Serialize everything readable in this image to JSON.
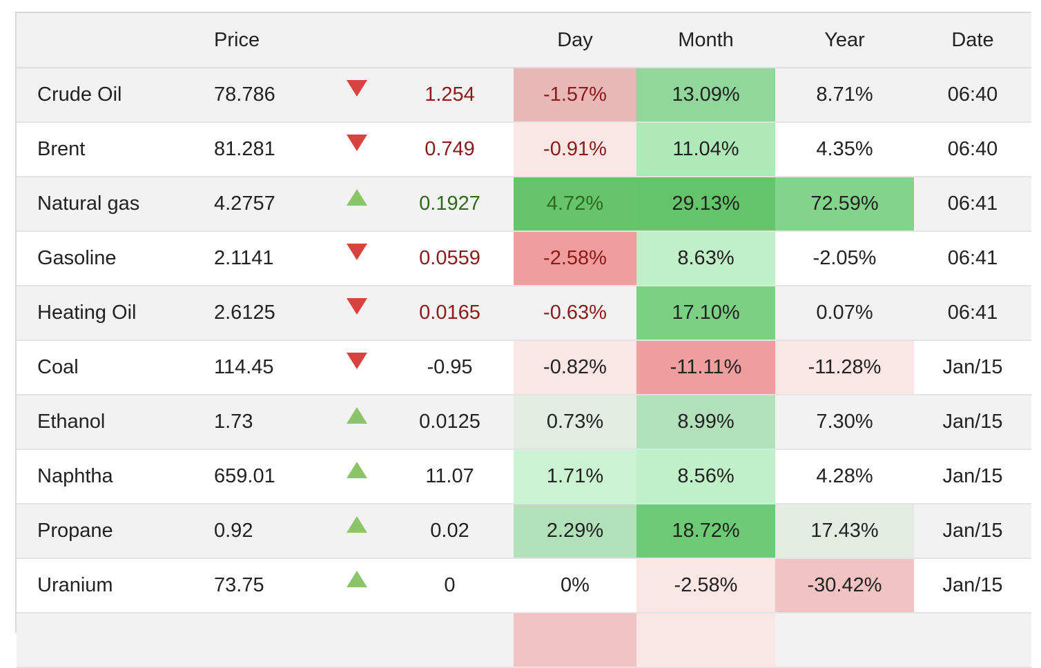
{
  "headers": {
    "name": "",
    "price": "Price",
    "dir": "",
    "change": "",
    "day": "Day",
    "month": "Month",
    "year": "Year",
    "date": "Date"
  },
  "rows": [
    {
      "name": "Crude Oil",
      "price": "78.786",
      "dir": "down",
      "change": "1.254",
      "change_color": "red",
      "day": "-1.57%",
      "day_bg": "#e8b7b6",
      "month": "13.09%",
      "month_bg": "#91d69a",
      "year": "8.71%",
      "year_bg": "",
      "date": "06:40"
    },
    {
      "name": "Brent",
      "price": "81.281",
      "dir": "down",
      "change": "0.749",
      "change_color": "red",
      "day": "-0.91%",
      "day_bg": "#fbe6e6",
      "month": "11.04%",
      "month_bg": "#aee9b7",
      "year": "4.35%",
      "year_bg": "",
      "date": "06:40"
    },
    {
      "name": "Natural gas",
      "price": "4.2757",
      "dir": "up",
      "change": "0.1927",
      "change_color": "green",
      "day": "4.72%",
      "day_bg": "#66c56b",
      "month": "29.13%",
      "month_bg": "#64c46a",
      "year": "72.59%",
      "year_bg": "#84d38c",
      "date": "06:41"
    },
    {
      "name": "Gasoline",
      "price": "2.1141",
      "dir": "down",
      "change": "0.0559",
      "change_color": "red",
      "day": "-2.58%",
      "day_bg": "#f09d9d",
      "month": "8.63%",
      "month_bg": "#c0efc8",
      "year": "-2.05%",
      "year_bg": "",
      "date": "06:41"
    },
    {
      "name": "Heating Oil",
      "price": "2.6125",
      "dir": "down",
      "change": "0.0165",
      "change_color": "red",
      "day": "-0.63%",
      "day_bg": "",
      "month": "17.10%",
      "month_bg": "#7bd083",
      "year": "0.07%",
      "year_bg": "",
      "date": "06:41"
    },
    {
      "name": "Coal",
      "price": "114.45",
      "dir": "down",
      "change": "-0.95",
      "change_color": "",
      "day": "-0.82%",
      "day_bg": "#fbe6e6",
      "month": "-11.11%",
      "month_bg": "#f09d9d",
      "year": "-11.28%",
      "year_bg": "#fbe6e6",
      "date": "Jan/15"
    },
    {
      "name": "Ethanol",
      "price": "1.73",
      "dir": "up",
      "change": "0.0125",
      "change_color": "",
      "day": "0.73%",
      "day_bg": "#e2ece3",
      "month": "8.99%",
      "month_bg": "#b2e0b8",
      "year": "7.30%",
      "year_bg": "",
      "date": "Jan/15"
    },
    {
      "name": "Naphtha",
      "price": "659.01",
      "dir": "up",
      "change": "11.07",
      "change_color": "",
      "day": "1.71%",
      "day_bg": "#cbf3d2",
      "month": "8.56%",
      "month_bg": "#c0efc8",
      "year": "4.28%",
      "year_bg": "",
      "date": "Jan/15"
    },
    {
      "name": "Propane",
      "price": "0.92",
      "dir": "up",
      "change": "0.02",
      "change_color": "",
      "day": "2.29%",
      "day_bg": "#b2e0b8",
      "month": "18.72%",
      "month_bg": "#6ecb75",
      "year": "17.43%",
      "year_bg": "#e2ece3",
      "date": "Jan/15"
    },
    {
      "name": "Uranium",
      "price": "73.75",
      "dir": "up",
      "change": "0",
      "change_color": "",
      "day": "0%",
      "day_bg": "",
      "month": "-2.58%",
      "month_bg": "#fbe6e6",
      "year": "-30.42%",
      "year_bg": "#f2c3c3",
      "date": "Jan/15"
    },
    {
      "name": "",
      "price": "",
      "dir": "",
      "change": "",
      "change_color": "",
      "day": "",
      "day_bg": "#f2c3c3",
      "month": "",
      "month_bg": "#fbe6e6",
      "year": "",
      "year_bg": "",
      "date": ""
    }
  ]
}
